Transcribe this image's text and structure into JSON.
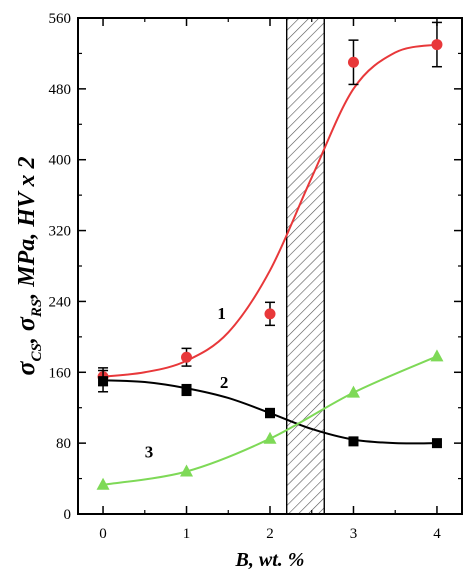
{
  "chart_data": {
    "type": "scatter",
    "xlabel": "B, wt. %",
    "ylabel": "σCS, σRS, MPa, HV x 2",
    "ylabel_parts": {
      "sigma1": "σ",
      "sub1": "CS",
      "sep1": ", ",
      "sigma2": "σ",
      "sub2": "RS",
      "rest": ", MPa, HV x 2"
    },
    "xlim": [
      -0.3,
      4.3
    ],
    "ylim": [
      0,
      560
    ],
    "xticks": [
      0,
      1,
      2,
      3,
      4
    ],
    "yticks": [
      0,
      80,
      160,
      240,
      320,
      400,
      480,
      560
    ],
    "grid": false,
    "shaded_region": {
      "x": [
        2.2,
        2.65
      ],
      "pattern": "hatched"
    },
    "series": [
      {
        "name": "1",
        "color": "#e8383a",
        "marker": "circle",
        "x": [
          0,
          1,
          2,
          3,
          4
        ],
        "y": [
          155,
          177,
          226,
          510,
          530
        ],
        "yerr": [
          10,
          10,
          13,
          25,
          25
        ],
        "fit": [
          [
            0,
            155
          ],
          [
            0.5,
            160
          ],
          [
            1,
            173
          ],
          [
            1.5,
            205
          ],
          [
            2,
            275
          ],
          [
            2.5,
            380
          ],
          [
            3,
            480
          ],
          [
            3.5,
            521
          ],
          [
            4,
            530
          ]
        ]
      },
      {
        "name": "2",
        "color": "#000000",
        "marker": "square",
        "x": [
          0,
          1,
          2,
          3,
          4
        ],
        "y": [
          150,
          140,
          114,
          82,
          80
        ],
        "yerr": [
          12,
          6,
          5,
          0,
          0
        ],
        "fit": [
          [
            0,
            151
          ],
          [
            0.5,
            149
          ],
          [
            1,
            142
          ],
          [
            1.5,
            131
          ],
          [
            2,
            114
          ],
          [
            2.5,
            96
          ],
          [
            3,
            84
          ],
          [
            3.5,
            80
          ],
          [
            4,
            80
          ]
        ]
      },
      {
        "name": "3",
        "color": "#7ed957",
        "marker": "triangle",
        "x": [
          0,
          1,
          2,
          3,
          4
        ],
        "y": [
          33,
          48,
          85,
          137,
          178
        ],
        "yerr": [
          0,
          0,
          0,
          0,
          0
        ],
        "fit": [
          [
            0,
            33
          ],
          [
            1,
            48
          ],
          [
            2,
            85
          ],
          [
            3,
            137
          ],
          [
            4,
            178
          ]
        ]
      }
    ],
    "annotations": [
      {
        "text": "1",
        "x": 1.42,
        "y": 220
      },
      {
        "text": "2",
        "x": 1.45,
        "y": 142
      },
      {
        "text": "3",
        "x": 0.55,
        "y": 64
      }
    ]
  }
}
